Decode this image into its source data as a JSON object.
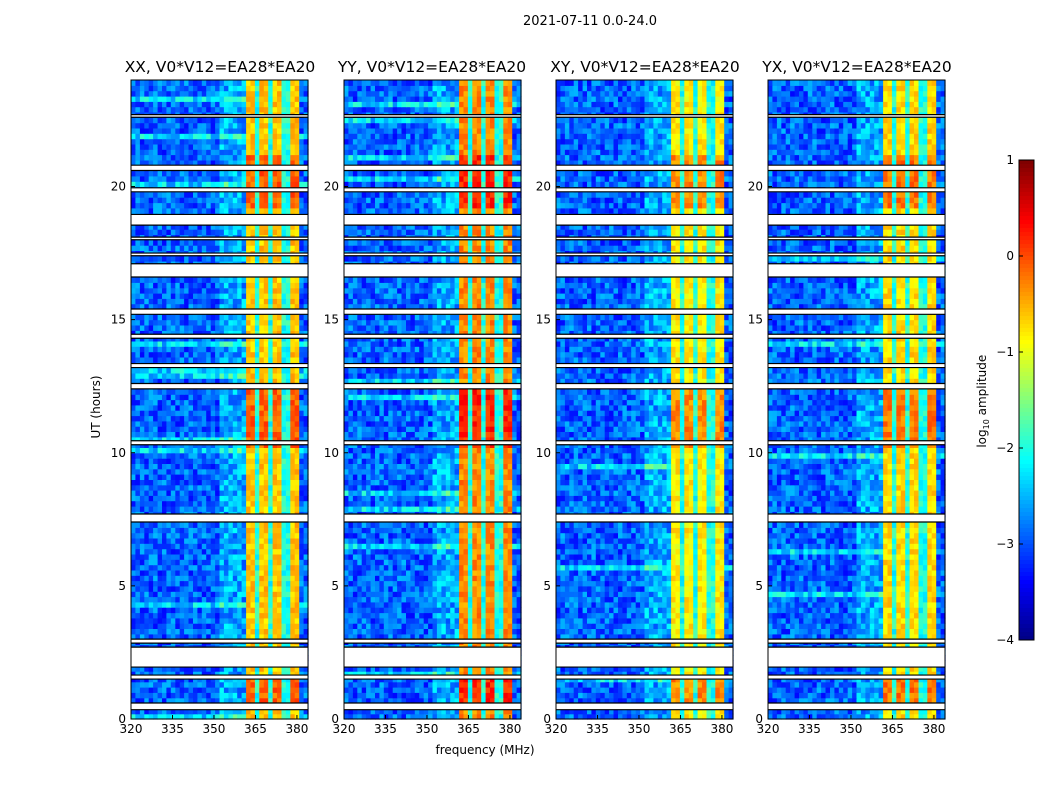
{
  "suptitle": "2021-07-11 0.0-24.0",
  "chart_data": {
    "type": "heatmap",
    "title": "2021-07-11 0.0-24.0",
    "xlabel": "frequency (MHz)",
    "ylabel": "UT (hours)",
    "xlim": [
      320,
      384
    ],
    "ylim": [
      0,
      24
    ],
    "xticks": [
      "320",
      "335",
      "350",
      "365",
      "380"
    ],
    "yticks": [
      "0",
      "5",
      "10",
      "15",
      "20"
    ],
    "panels": [
      {
        "title": "XX, V0*V12=EA28*EA20",
        "background_level": -2.9,
        "band_level": -0.6
      },
      {
        "title": "YY, V0*V12=EA28*EA20",
        "background_level": -2.9,
        "band_level": -0.3
      },
      {
        "title": "XY, V0*V12=EA28*EA20",
        "background_level": -2.9,
        "band_level": -0.8
      },
      {
        "title": "YX, V0*V12=EA28*EA20",
        "background_level": -2.9,
        "band_level": -0.7
      }
    ],
    "signal_band_mhz": [
      361,
      381
    ],
    "band_gaps_mhz": [
      366,
      371,
      376
    ],
    "flagged_hours": [
      [
        0.35,
        0.6
      ],
      [
        1.5,
        1.65
      ],
      [
        1.95,
        2.7
      ],
      [
        2.85,
        3.0
      ],
      [
        7.4,
        7.7
      ],
      [
        10.3,
        10.45
      ],
      [
        12.4,
        12.6
      ],
      [
        13.2,
        13.35
      ],
      [
        14.3,
        14.45
      ],
      [
        15.2,
        15.4
      ],
      [
        16.6,
        17.1
      ],
      [
        17.4,
        17.5
      ],
      [
        18.0,
        18.1
      ],
      [
        18.55,
        18.95
      ],
      [
        19.8,
        19.95
      ],
      [
        20.6,
        20.8
      ],
      [
        22.6,
        22.7
      ]
    ],
    "colorbar": {
      "label": "log10 amplitude",
      "label_main": "log",
      "label_sub": "10",
      "label_rest": " amplitude",
      "clim": [
        -4,
        1
      ],
      "ticks": [
        "1",
        "0",
        "−1",
        "−2",
        "−3",
        "−4"
      ],
      "colormap": "jet"
    }
  }
}
